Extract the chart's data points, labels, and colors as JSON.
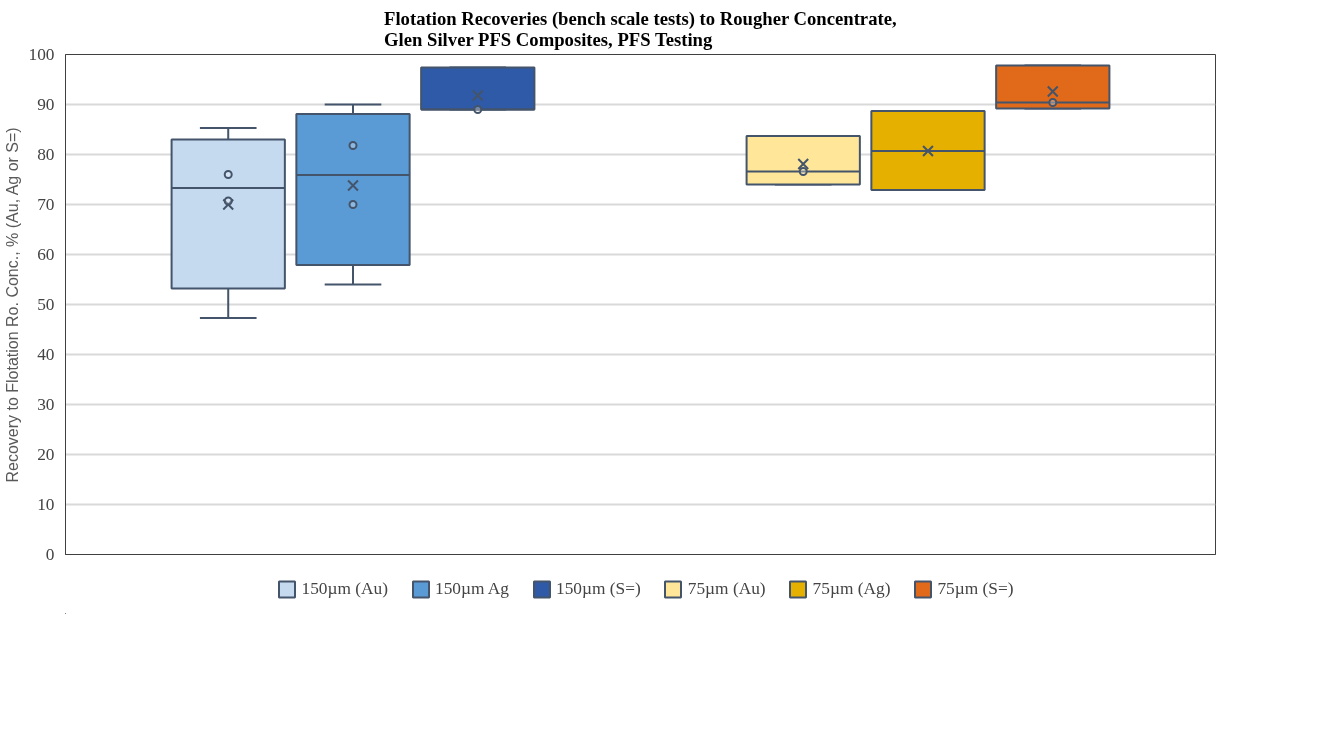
{
  "chart_data": {
    "type": "box",
    "title": "Flotation Recoveries (bench scale tests) to Rougher Concentrate,\nGlen Silver PFS Composites, PFS Testing",
    "ylabel": "Recovery to Flotation Ro. Conc., % (Au, Ag or S=)",
    "categories": [
      null,
      null
    ],
    "ylim": [
      0,
      100
    ],
    "yticks": [
      0,
      10,
      20,
      30,
      40,
      50,
      60,
      70,
      80,
      90,
      100
    ],
    "grid": "y",
    "legend": "bottom",
    "tick_labels": "y",
    "marker": "cross",
    "series": [
      {
        "name": "150µm (Au)",
        "color": "#c5d9ef",
        "boxes": [
          {
            "low": 47.3,
            "q1": 53.2,
            "median": 73.3,
            "q3": 83,
            "high": 85.3,
            "mean": 70,
            "outliers": [
              76,
              70.7
            ]
          },
          null
        ]
      },
      {
        "name": "150µm Ag",
        "color": "#5b9bd5",
        "boxes": [
          {
            "low": 54,
            "q1": 57.9,
            "median": 75.9,
            "q3": 88.1,
            "high": 90,
            "mean": 73.8,
            "outliers": [
              81.8,
              70
            ]
          },
          null
        ]
      },
      {
        "name": "150µm (S=)",
        "color": "#2e5aa8",
        "boxes": [
          {
            "low": 89,
            "q1": 89,
            "median": 89,
            "q3": 97.4,
            "high": 97.4,
            "mean": 91.8,
            "outliers": [
              89
            ]
          },
          null
        ]
      },
      {
        "name": "75µm (Au)",
        "color": "#ffe699",
        "boxes": [
          null,
          {
            "low": 74,
            "q1": 74,
            "median": 76.6,
            "q3": 83.7,
            "high": 83.7,
            "mean": 78.1,
            "outliers": [
              76.6
            ]
          }
        ]
      },
      {
        "name": "75µm (Ag)",
        "color": "#e6b000",
        "boxes": [
          null,
          {
            "low": 72.9,
            "q1": 72.9,
            "median": 80.7,
            "q3": 88.7,
            "high": 88.7,
            "mean": 80.7
          }
        ]
      },
      {
        "name": "75µm (S=)",
        "color": "#e06a1a",
        "boxes": [
          null,
          {
            "low": 89.2,
            "q1": 89.2,
            "median": 90.4,
            "q3": 97.8,
            "high": 97.8,
            "mean": 92.6,
            "outliers": [
              90.4
            ]
          }
        ]
      }
    ]
  }
}
